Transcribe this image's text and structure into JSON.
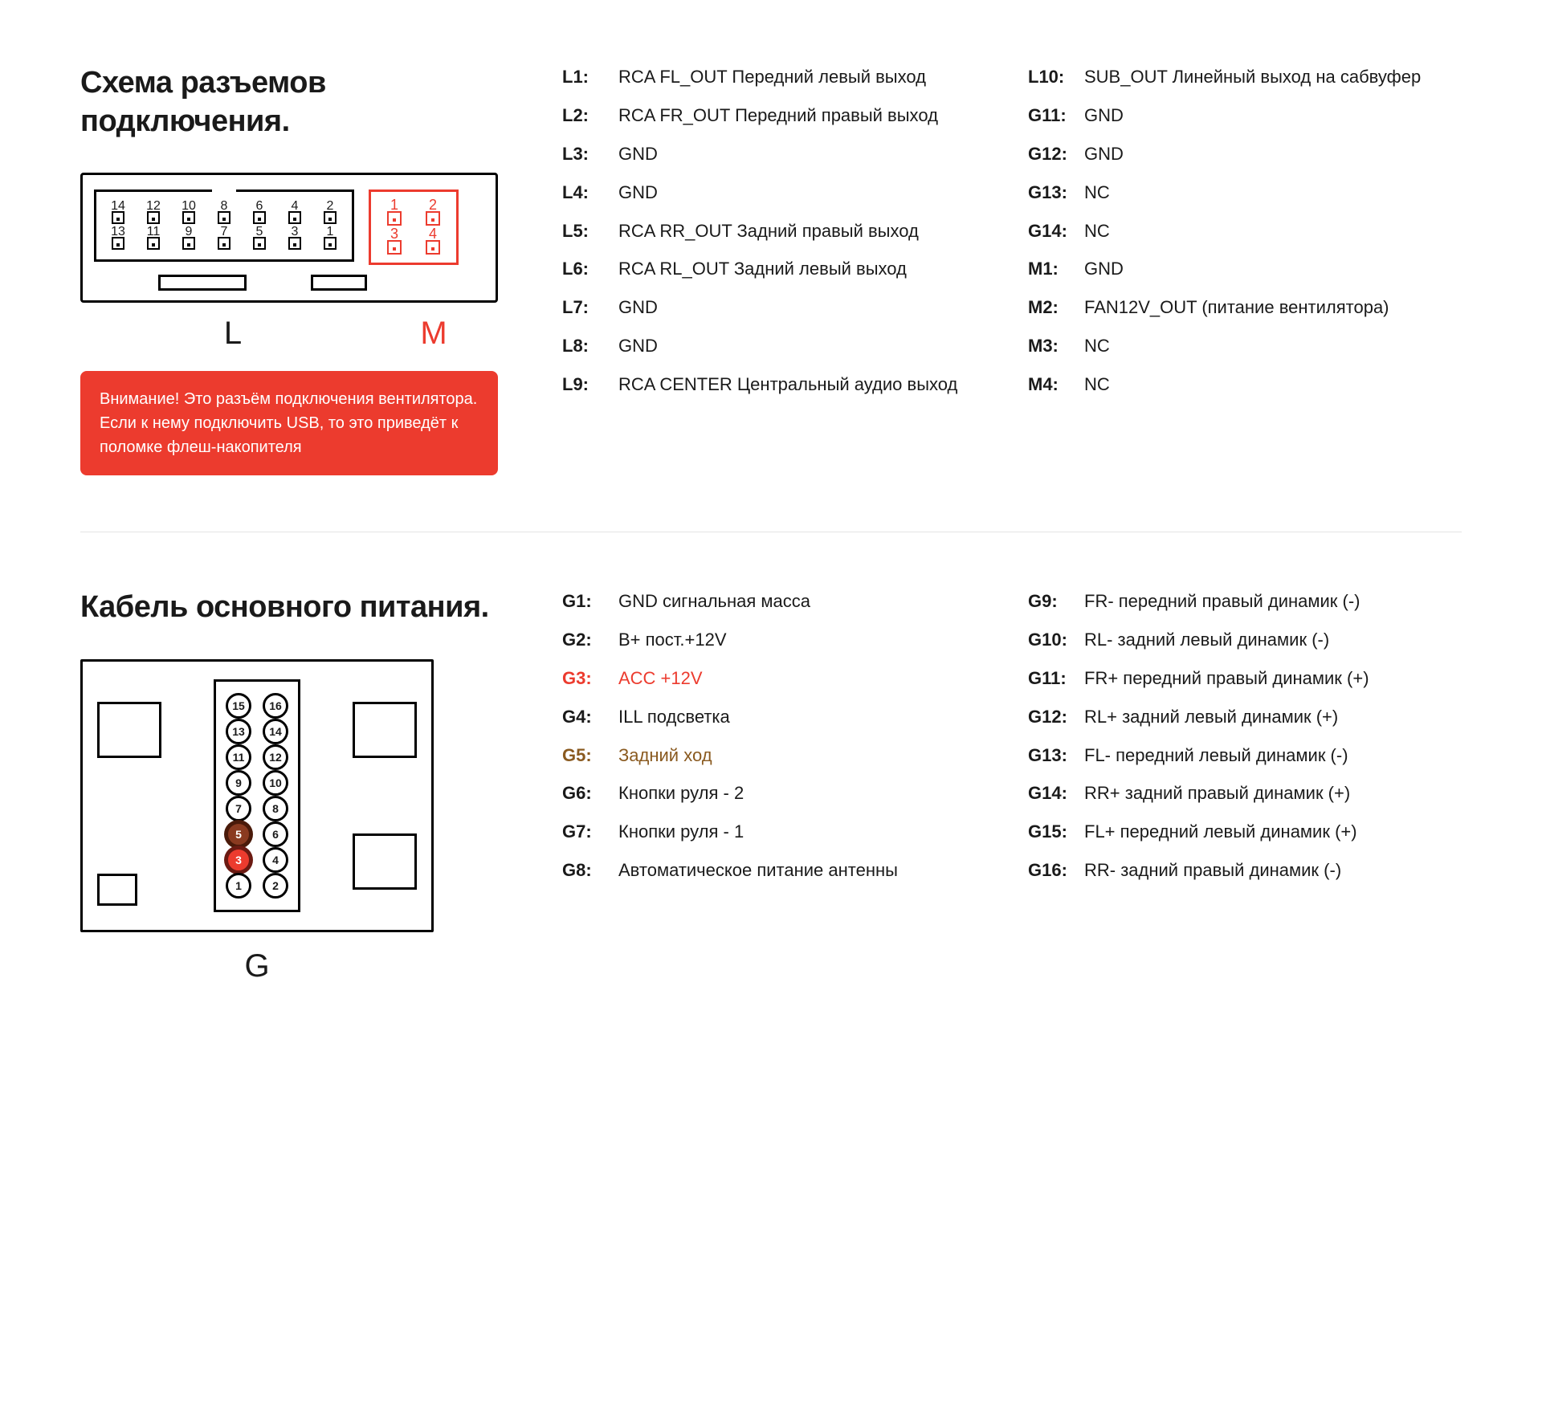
{
  "colors": {
    "accent_red": "#ec3b2e",
    "text": "#1a1a1a",
    "divider": "#e5e5e5",
    "brown": "#8a5a20",
    "bg": "#ffffff"
  },
  "section1": {
    "title": "Схема разъемов подключения.",
    "diagram": {
      "L_rows": [
        [
          "14",
          "12",
          "10",
          "8",
          "6",
          "4",
          "2"
        ],
        [
          "13",
          "11",
          "9",
          "7",
          "5",
          "3",
          "1"
        ]
      ],
      "M_rows": [
        [
          "1",
          "2"
        ],
        [
          "3",
          "4"
        ]
      ],
      "label_L": "L",
      "label_M": "M"
    },
    "warning": "Внимание! Это разъём подключения вентилятора. Если к нему подключить USB, то это приведёт к поломке флеш-накопителя",
    "pins_left": [
      {
        "k": "L1:",
        "v": "RCA FL_OUT Передний левый выход"
      },
      {
        "k": "L2:",
        "v": "RCA FR_OUT  Передний правый выход"
      },
      {
        "k": "L3:",
        "v": "GND"
      },
      {
        "k": "L4:",
        "v": "GND"
      },
      {
        "k": "L5:",
        "v": "RCA RR_OUT Задний правый выход"
      },
      {
        "k": "L6:",
        "v": "RCA RL_OUT Задний левый выход"
      },
      {
        "k": "L7:",
        "v": "GND"
      },
      {
        "k": "L8:",
        "v": "GND"
      },
      {
        "k": "L9:",
        "v": "RCA CENTER Центральный аудио выход"
      }
    ],
    "pins_right": [
      {
        "k": "L10:",
        "v": "SUB_OUT Линейный выход на сабвуфер"
      },
      {
        "k": "G11:",
        "v": "GND"
      },
      {
        "k": "G12:",
        "v": "GND"
      },
      {
        "k": "G13:",
        "v": "NC"
      },
      {
        "k": "G14:",
        "v": "NC"
      },
      {
        "k": "M1:",
        "v": "GND"
      },
      {
        "k": "M2:",
        "v": "FAN12V_OUT (питание вентилятора)"
      },
      {
        "k": "M3:",
        "v": "NC"
      },
      {
        "k": "M4:",
        "v": "NC"
      }
    ]
  },
  "section2": {
    "title": "Кабель основного питания.",
    "diagram": {
      "rows": [
        [
          "15",
          "16"
        ],
        [
          "13",
          "14"
        ],
        [
          "11",
          "12"
        ],
        [
          "9",
          "10"
        ],
        [
          "7",
          "8"
        ],
        [
          "5",
          "6"
        ],
        [
          "3",
          "4"
        ],
        [
          "1",
          "2"
        ]
      ],
      "highlight_red": [
        "3"
      ],
      "highlight_brown": [
        "5"
      ],
      "label": "G"
    },
    "pins_left": [
      {
        "k": "G1:",
        "v": "GND сигнальная масса"
      },
      {
        "k": "G2:",
        "v": "B+ пост.+12V"
      },
      {
        "k": "G3:",
        "v": "ACC +12V",
        "cls": "red-text"
      },
      {
        "k": "G4:",
        "v": "ILL подсветка"
      },
      {
        "k": "G5:",
        "v": "Задний ход",
        "cls": "brown-text"
      },
      {
        "k": "G6:",
        "v": "Кнопки руля - 2"
      },
      {
        "k": "G7:",
        "v": "Кнопки руля - 1"
      },
      {
        "k": "G8:",
        "v": "Автоматическое питание антенны"
      }
    ],
    "pins_right": [
      {
        "k": "G9:",
        "v": "FR- передний правый динамик (-)"
      },
      {
        "k": "G10:",
        "v": "RL- задний левый динамик (-)"
      },
      {
        "k": "G11:",
        "v": "FR+ передний правый динамик (+)"
      },
      {
        "k": "G12:",
        "v": "RL+ задний левый динамик (+)"
      },
      {
        "k": "G13:",
        "v": "FL- передний левый динамик (-)"
      },
      {
        "k": "G14:",
        "v": "RR+ задний правый динамик (+)"
      },
      {
        "k": "G15:",
        "v": "FL+ передний левый динамик (+)"
      },
      {
        "k": "G16:",
        "v": "RR- задний правый динамик (-)"
      }
    ]
  }
}
